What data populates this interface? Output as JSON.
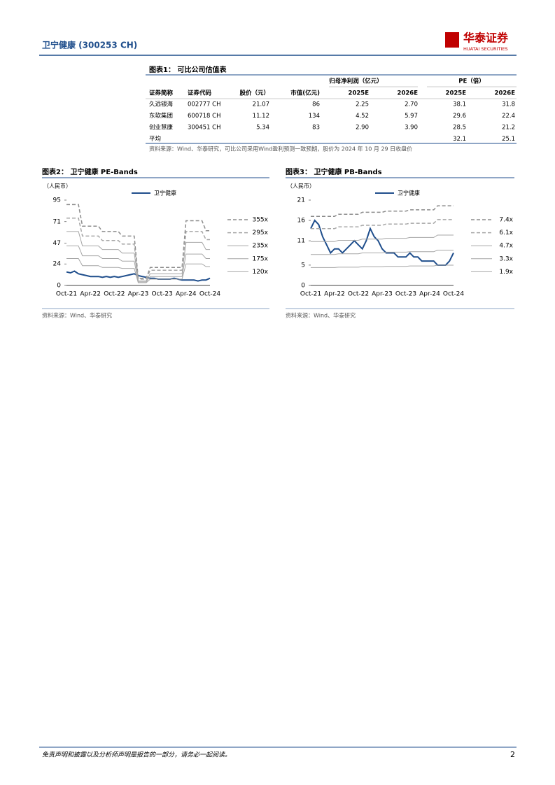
{
  "header": {
    "title": "卫宁健康 (300253 CH)",
    "logo_cn": "华泰证券",
    "logo_en": "HUATAI SECURITIES"
  },
  "table": {
    "title": "图表1： 可比公司估值表",
    "group_headers": [
      "归母净利润（亿元）",
      "PE（倍）"
    ],
    "columns": [
      "证券简称",
      "证券代码",
      "股价（元）",
      "市值(亿元)",
      "2025E",
      "2026E",
      "2025E",
      "2026E"
    ],
    "rows": [
      [
        "久远银海",
        "002777 CH",
        "21.07",
        "86",
        "2.25",
        "2.70",
        "38.1",
        "31.8"
      ],
      [
        "东软集团",
        "600718 CH",
        "11.12",
        "134",
        "4.52",
        "5.97",
        "29.6",
        "22.4"
      ],
      [
        "创业慧康",
        "300451 CH",
        "5.34",
        "83",
        "2.90",
        "3.90",
        "28.5",
        "21.2"
      ],
      [
        "平均",
        null,
        null,
        null,
        null,
        null,
        "32.1",
        "25.1"
      ]
    ],
    "source": "资料来源：Wind、华泰研究，可比公司采用Wind盈利预测一致预期，股价为 2024 年 10 月 29 日收盘价"
  },
  "chart_data": [
    {
      "type": "line",
      "title": "图表2： 卫宁健康 PE-Bands",
      "unit_label": "（人民币）",
      "source": "资料来源：Wind、华泰研究",
      "categories": [
        "Oct-21",
        null,
        null,
        null,
        null,
        null,
        "Apr-22",
        null,
        null,
        null,
        null,
        null,
        "Oct-22",
        null,
        null,
        null,
        null,
        null,
        "Apr-23",
        null,
        null,
        null,
        null,
        null,
        "Oct-23",
        null,
        null,
        null,
        null,
        null,
        "Apr-24",
        null,
        null,
        null,
        null,
        null,
        "Oct-24"
      ],
      "ylim": [
        0,
        95
      ],
      "yticks": [
        0,
        24,
        47,
        71,
        95
      ],
      "series": [
        {
          "name": "卫宁健康",
          "color": "#1f4e8c",
          "dash": false,
          "values": [
            15,
            14,
            16,
            13,
            12,
            11,
            10,
            10,
            10,
            9,
            10,
            9,
            10,
            9,
            10,
            11,
            12,
            13,
            11,
            10,
            9,
            8,
            8,
            7,
            7,
            7,
            7,
            8,
            7,
            6,
            6,
            6,
            6,
            5,
            6,
            6,
            8
          ]
        },
        {
          "name": "355x",
          "color": "#8c8c8c",
          "dash": true,
          "values": [
            90,
            90,
            90,
            90,
            66,
            66,
            66,
            66,
            66,
            60,
            60,
            60,
            60,
            60,
            55,
            55,
            55,
            55,
            8,
            8,
            8,
            20,
            20,
            20,
            20,
            20,
            20,
            20,
            20,
            20,
            72,
            72,
            72,
            72,
            72,
            61,
            61
          ]
        },
        {
          "name": "295x",
          "color": "#a6a6a6",
          "dash": true,
          "values": [
            75,
            75,
            75,
            75,
            55,
            55,
            55,
            55,
            55,
            50,
            50,
            50,
            50,
            50,
            46,
            46,
            46,
            46,
            7,
            7,
            7,
            17,
            17,
            17,
            17,
            17,
            17,
            17,
            17,
            17,
            60,
            60,
            60,
            60,
            60,
            51,
            51
          ]
        },
        {
          "name": "235x",
          "color": "#a6a6a6",
          "dash": false,
          "values": [
            60,
            60,
            60,
            60,
            44,
            44,
            44,
            44,
            44,
            40,
            40,
            40,
            40,
            40,
            36,
            36,
            36,
            36,
            5,
            5,
            5,
            13,
            13,
            13,
            13,
            13,
            13,
            13,
            13,
            13,
            48,
            48,
            48,
            48,
            48,
            40,
            40
          ]
        },
        {
          "name": "175x",
          "color": "#a6a6a6",
          "dash": false,
          "values": [
            44,
            44,
            44,
            44,
            33,
            33,
            33,
            33,
            33,
            30,
            30,
            30,
            30,
            30,
            27,
            27,
            27,
            27,
            4,
            4,
            4,
            10,
            10,
            10,
            10,
            10,
            10,
            10,
            10,
            10,
            35,
            35,
            35,
            35,
            35,
            30,
            30
          ]
        },
        {
          "name": "120x",
          "color": "#a6a6a6",
          "dash": false,
          "values": [
            30,
            30,
            30,
            30,
            22,
            22,
            22,
            22,
            22,
            20,
            20,
            20,
            20,
            20,
            19,
            19,
            19,
            19,
            3,
            3,
            3,
            7,
            7,
            7,
            7,
            7,
            7,
            7,
            7,
            7,
            24,
            24,
            24,
            24,
            24,
            21,
            21
          ]
        }
      ]
    },
    {
      "type": "line",
      "title": "图表3： 卫宁健康 PB-Bands",
      "unit_label": "（人民币）",
      "source": "资料来源：Wind、华泰研究",
      "categories": [
        "Oct-21",
        null,
        null,
        null,
        null,
        null,
        "Apr-22",
        null,
        null,
        null,
        null,
        null,
        "Oct-22",
        null,
        null,
        null,
        null,
        null,
        "Apr-23",
        null,
        null,
        null,
        null,
        null,
        "Oct-23",
        null,
        null,
        null,
        null,
        null,
        "Apr-24",
        null,
        null,
        null,
        null,
        null,
        "Oct-24"
      ],
      "ylim": [
        0,
        21
      ],
      "yticks": [
        0,
        5,
        11,
        16,
        21
      ],
      "series": [
        {
          "name": "卫宁健康",
          "color": "#1f4e8c",
          "dash": false,
          "values": [
            14,
            16,
            15,
            12,
            10,
            8,
            9,
            9,
            8,
            9,
            10,
            11,
            10,
            9,
            11,
            14,
            12,
            11,
            9,
            8,
            8,
            8,
            7,
            7,
            7,
            8,
            7,
            7,
            6,
            6,
            6,
            6,
            5,
            5,
            5,
            6,
            8
          ]
        },
        {
          "name": "7.4x",
          "color": "#8c8c8c",
          "dash": true,
          "values": [
            17,
            17,
            17,
            17,
            17,
            17,
            17,
            17.5,
            17.5,
            17.5,
            17.5,
            17.5,
            17.5,
            18,
            18,
            18,
            18,
            18,
            18,
            18.3,
            18.3,
            18.3,
            18.3,
            18.3,
            18.3,
            18.6,
            18.6,
            18.6,
            18.6,
            18.6,
            18.6,
            18.6,
            19.6,
            19.6,
            19.6,
            19.6,
            19.6
          ]
        },
        {
          "name": "6.1x",
          "color": "#a6a6a6",
          "dash": true,
          "values": [
            14,
            14,
            14,
            14,
            14,
            14,
            14,
            14.4,
            14.4,
            14.4,
            14.4,
            14.4,
            14.4,
            14.8,
            14.8,
            14.8,
            14.8,
            14.8,
            14.8,
            15.1,
            15.1,
            15.1,
            15.1,
            15.1,
            15.1,
            15.3,
            15.3,
            15.3,
            15.3,
            15.3,
            15.3,
            15.3,
            16.2,
            16.2,
            16.2,
            16.2,
            16.2
          ]
        },
        {
          "name": "4.7x",
          "color": "#a6a6a6",
          "dash": false,
          "values": [
            10.8,
            10.8,
            10.8,
            10.8,
            10.8,
            10.8,
            10.8,
            11.1,
            11.1,
            11.1,
            11.1,
            11.1,
            11.1,
            11.4,
            11.4,
            11.4,
            11.4,
            11.4,
            11.4,
            11.6,
            11.6,
            11.6,
            11.6,
            11.6,
            11.6,
            11.8,
            11.8,
            11.8,
            11.8,
            11.8,
            11.8,
            11.8,
            12.4,
            12.4,
            12.4,
            12.4,
            12.4
          ]
        },
        {
          "name": "3.3x",
          "color": "#a6a6a6",
          "dash": false,
          "values": [
            7.6,
            7.6,
            7.6,
            7.6,
            7.6,
            7.6,
            7.6,
            7.8,
            7.8,
            7.8,
            7.8,
            7.8,
            7.8,
            8,
            8,
            8,
            8,
            8,
            8,
            8.2,
            8.2,
            8.2,
            8.2,
            8.2,
            8.2,
            8.3,
            8.3,
            8.3,
            8.3,
            8.3,
            8.3,
            8.3,
            8.7,
            8.7,
            8.7,
            8.7,
            8.7
          ]
        },
        {
          "name": "1.9x",
          "color": "#a6a6a6",
          "dash": false,
          "values": [
            4.4,
            4.4,
            4.4,
            4.4,
            4.4,
            4.4,
            4.4,
            4.5,
            4.5,
            4.5,
            4.5,
            4.5,
            4.5,
            4.6,
            4.6,
            4.6,
            4.6,
            4.6,
            4.6,
            4.7,
            4.7,
            4.7,
            4.7,
            4.7,
            4.7,
            4.8,
            4.8,
            4.8,
            4.8,
            4.8,
            4.8,
            4.8,
            5,
            5,
            5,
            5,
            5
          ]
        }
      ]
    }
  ],
  "footer": {
    "disclaimer": "免责声明和披露以及分析师声明是报告的一部分，请务必一起阅读。",
    "page": "2"
  }
}
